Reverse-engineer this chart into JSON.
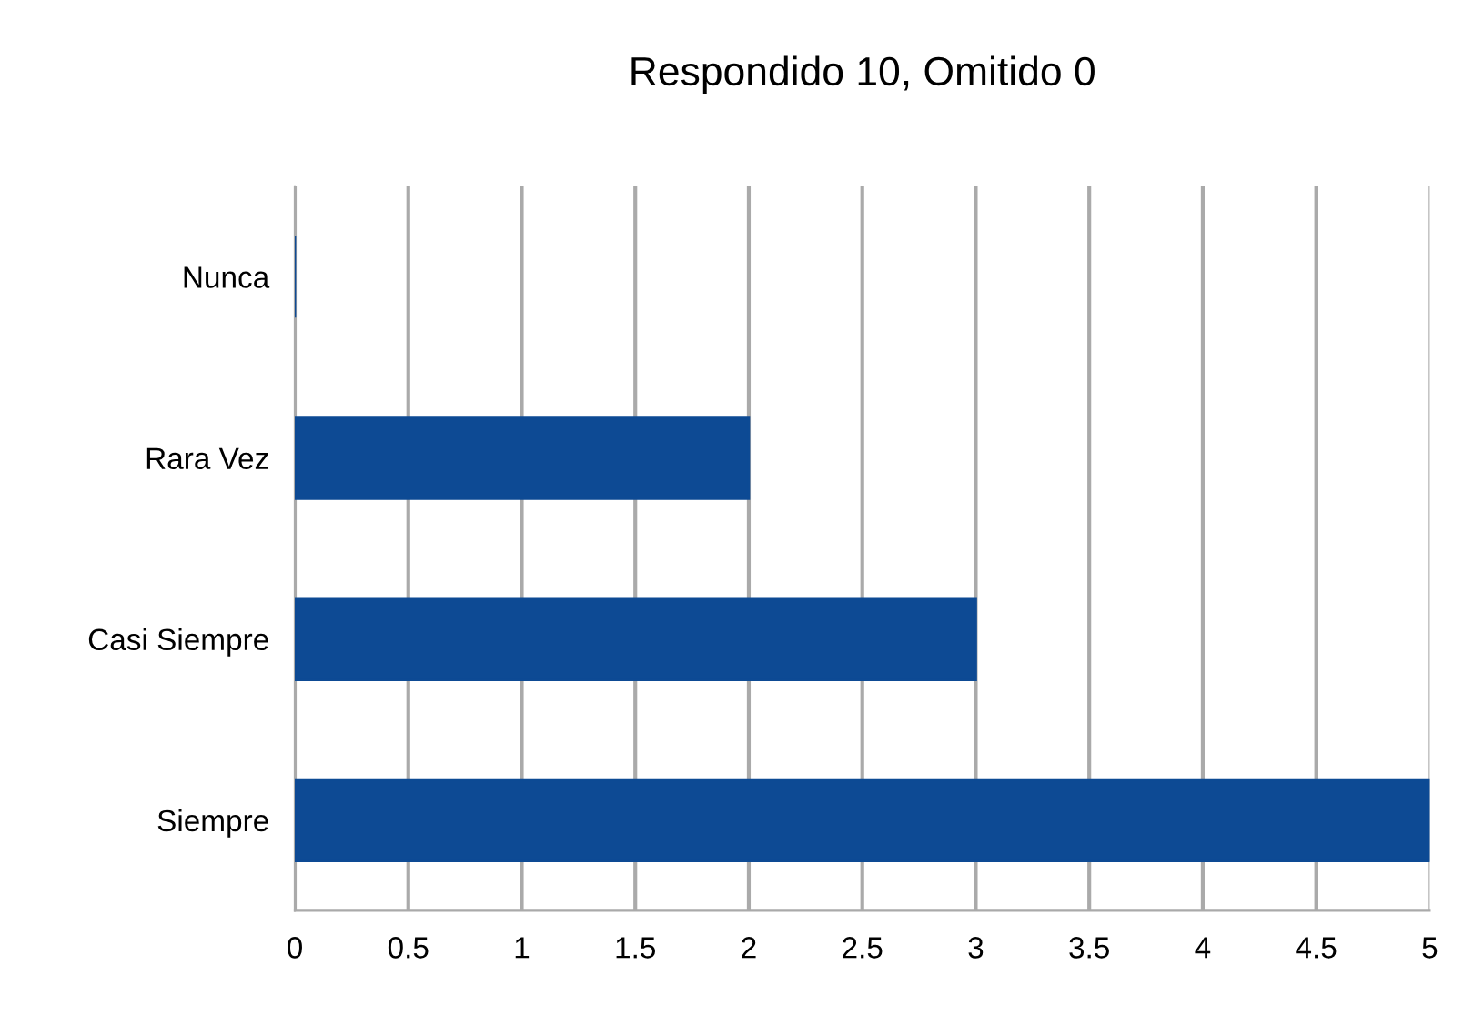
{
  "chart_data": {
    "type": "bar",
    "orientation": "horizontal",
    "title": "Respondido 10, Omitido 0",
    "categories": [
      "Nunca",
      "Rara Vez",
      "Casi Siempre",
      "Siempre"
    ],
    "values": [
      0,
      2,
      3,
      5
    ],
    "color": "#0d4a94",
    "xlim": [
      0,
      5
    ],
    "xticks": [
      0,
      0.5,
      1,
      1.5,
      2,
      2.5,
      3,
      3.5,
      4,
      4.5,
      5
    ],
    "grid": "x"
  }
}
